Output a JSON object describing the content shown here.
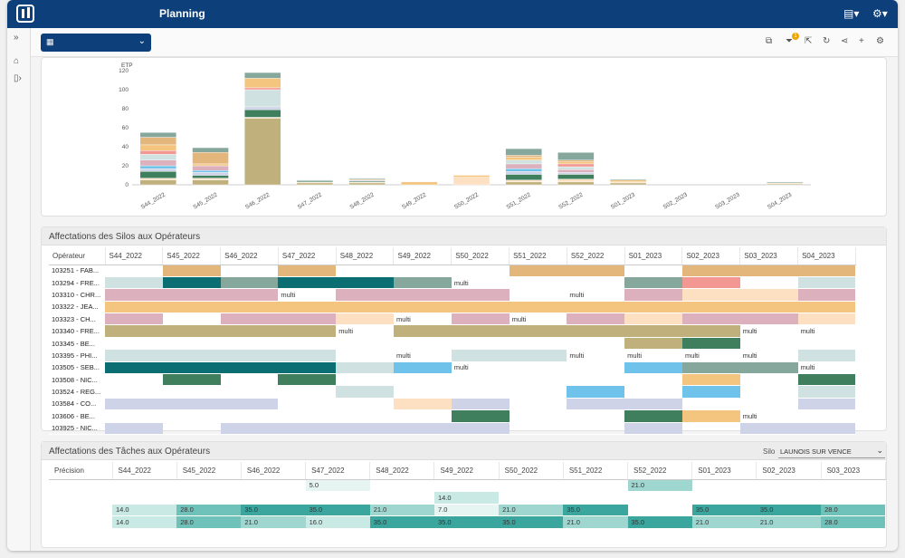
{
  "header": {
    "title": "Planning"
  },
  "icons": {
    "logo": "logo-icon",
    "clipboard": "clipboard-icon",
    "settings": "gear-icon",
    "expand": "expand-sidebar-icon",
    "home": "home-icon",
    "doc": "document-icon",
    "calendar": "calendar-icon"
  },
  "toolbar": {
    "filter_badge": "1"
  },
  "colors": {
    "accent": "#0d3f7a",
    "tan": "#e3b67c",
    "teal": "#0b6e73",
    "sage": "#85a79c",
    "pink": "#dcb0bd",
    "gold": "#f4c57f",
    "olive": "#bfb07c",
    "lightblue": "#cfe1e1",
    "sky": "#6fc2ea",
    "green": "#3f7f5e",
    "peach": "#fde0c2",
    "lavender": "#cfd3e8",
    "salmon": "#f39792"
  },
  "chart_data": {
    "type": "bar",
    "stacked": true,
    "ylabel": "ETP",
    "ylim": [
      0,
      120
    ],
    "yticks": [
      0,
      20,
      40,
      60,
      80,
      100,
      120
    ],
    "categories": [
      "S44_2022",
      "S45_2022",
      "S46_2022",
      "S47_2022",
      "S48_2022",
      "S49_2022",
      "S50_2022",
      "S51_2022",
      "S52_2022",
      "S01_2023",
      "S02_2023",
      "S03_2023",
      "S04_2023"
    ],
    "series": [
      {
        "color": "#bfb07c",
        "values": [
          5,
          5,
          70,
          2,
          2,
          0,
          0,
          3,
          3,
          2,
          0,
          0,
          1
        ]
      },
      {
        "color": "#fde0c2",
        "values": [
          2,
          2,
          1,
          1,
          1,
          0,
          8,
          2,
          3,
          1,
          0,
          0,
          1
        ]
      },
      {
        "color": "#3f7f5e",
        "values": [
          7,
          3,
          8,
          1,
          1,
          0,
          0,
          6,
          5,
          0,
          0,
          0,
          0
        ]
      },
      {
        "color": "#cfd3e8",
        "values": [
          3,
          3,
          3,
          0,
          1,
          0,
          0,
          3,
          2,
          0,
          0,
          0,
          0
        ]
      },
      {
        "color": "#6fc2ea",
        "values": [
          3,
          2,
          0,
          0,
          0,
          0,
          0,
          3,
          0,
          0,
          0,
          0,
          0
        ]
      },
      {
        "color": "#dcb0bd",
        "values": [
          6,
          5,
          0,
          0,
          0,
          0,
          0,
          5,
          3,
          0,
          0,
          0,
          0
        ]
      },
      {
        "color": "#cfe1e1",
        "values": [
          6,
          0,
          18,
          0,
          0,
          0,
          0,
          4,
          3,
          0,
          0,
          0,
          0
        ]
      },
      {
        "color": "#f39792",
        "values": [
          4,
          0,
          2,
          0,
          0,
          0,
          0,
          0,
          3,
          0,
          0,
          0,
          0
        ]
      },
      {
        "color": "#f4c57f",
        "values": [
          6,
          2,
          10,
          0,
          0,
          3,
          2,
          3,
          2,
          2,
          0,
          0,
          0
        ]
      },
      {
        "color": "#e3b67c",
        "values": [
          8,
          12,
          0,
          0,
          1,
          0,
          0,
          2,
          2,
          0,
          0,
          0,
          0
        ]
      },
      {
        "color": "#85a79c",
        "values": [
          5,
          5,
          6,
          1,
          1,
          0,
          0,
          7,
          8,
          1,
          0,
          0,
          1
        ]
      }
    ]
  },
  "grid1": {
    "title": "Affectations des Silos aux Opérateurs",
    "operator_header": "Opérateur",
    "weeks": [
      "S44_2022",
      "S45_2022",
      "S46_2022",
      "S47_2022",
      "S48_2022",
      "S49_2022",
      "S50_2022",
      "S51_2022",
      "S52_2022",
      "S01_2023",
      "S02_2023",
      "S03_2023",
      "S04_2023"
    ],
    "rows": [
      {
        "op": "103251 - FAB...",
        "cells": [
          [
            "",
            ""
          ],
          [
            "#e3b67c",
            ""
          ],
          [
            "",
            ""
          ],
          [
            "#e3b67c",
            ""
          ],
          [
            "",
            ""
          ],
          [
            "",
            ""
          ],
          [
            "",
            ""
          ],
          [
            "#e3b67c",
            ""
          ],
          [
            "#e3b67c",
            ""
          ],
          [
            "",
            ""
          ],
          [
            "#e3b67c",
            ""
          ],
          [
            "#e3b67c",
            ""
          ],
          [
            "#e3b67c",
            ""
          ]
        ]
      },
      {
        "op": "103294 - FRE...",
        "cells": [
          [
            "#cfe1e1",
            ""
          ],
          [
            "#0b6e73",
            ""
          ],
          [
            "#85a79c",
            ""
          ],
          [
            "#0b6e73",
            ""
          ],
          [
            "#0b6e73",
            ""
          ],
          [
            "#85a79c",
            ""
          ],
          [
            "",
            "multi"
          ],
          [
            "",
            ""
          ],
          [
            "",
            ""
          ],
          [
            "#85a79c",
            ""
          ],
          [
            "#f39792",
            ""
          ],
          [
            "",
            ""
          ],
          [
            "#cfe1e1",
            ""
          ]
        ]
      },
      {
        "op": "103310 - CHR...",
        "cells": [
          [
            "#dcb0bd",
            ""
          ],
          [
            "#dcb0bd",
            ""
          ],
          [
            "#dcb0bd",
            ""
          ],
          [
            "",
            "multi"
          ],
          [
            "#dcb0bd",
            ""
          ],
          [
            "#dcb0bd",
            ""
          ],
          [
            "#dcb0bd",
            ""
          ],
          [
            "",
            ""
          ],
          [
            "",
            "multi"
          ],
          [
            "#dcb0bd",
            ""
          ],
          [
            "#fde0c2",
            ""
          ],
          [
            "#fde0c2",
            ""
          ],
          [
            "#dcb0bd",
            ""
          ]
        ]
      },
      {
        "op": "103322 - JEA...",
        "cells": [
          [
            "#f4c57f",
            ""
          ],
          [
            "#f4c57f",
            ""
          ],
          [
            "#f4c57f",
            ""
          ],
          [
            "#f4c57f",
            ""
          ],
          [
            "#f4c57f",
            ""
          ],
          [
            "#f4c57f",
            ""
          ],
          [
            "#f4c57f",
            ""
          ],
          [
            "#f4c57f",
            ""
          ],
          [
            "#f4c57f",
            ""
          ],
          [
            "#f4c57f",
            ""
          ],
          [
            "#f4c57f",
            ""
          ],
          [
            "#f4c57f",
            ""
          ],
          [
            "#f4c57f",
            ""
          ]
        ]
      },
      {
        "op": "103323 - CH...",
        "cells": [
          [
            "#dcb0bd",
            ""
          ],
          [
            "",
            ""
          ],
          [
            "#dcb0bd",
            ""
          ],
          [
            "#dcb0bd",
            ""
          ],
          [
            "#fde0c2",
            ""
          ],
          [
            "",
            "multi"
          ],
          [
            "#dcb0bd",
            ""
          ],
          [
            "",
            "multi"
          ],
          [
            "#dcb0bd",
            ""
          ],
          [
            "#fde0c2",
            ""
          ],
          [
            "#dcb0bd",
            ""
          ],
          [
            "#dcb0bd",
            ""
          ],
          [
            "#fde0c2",
            ""
          ]
        ]
      },
      {
        "op": "103340 - FRE...",
        "cells": [
          [
            "#bfb07c",
            ""
          ],
          [
            "#bfb07c",
            ""
          ],
          [
            "#bfb07c",
            ""
          ],
          [
            "#bfb07c",
            ""
          ],
          [
            "",
            "multi"
          ],
          [
            "#bfb07c",
            ""
          ],
          [
            "#bfb07c",
            ""
          ],
          [
            "#bfb07c",
            ""
          ],
          [
            "#bfb07c",
            ""
          ],
          [
            "#bfb07c",
            ""
          ],
          [
            "#bfb07c",
            ""
          ],
          [
            "",
            "multi"
          ],
          [
            "",
            "multi"
          ]
        ]
      },
      {
        "op": "103345 - BE...",
        "cells": [
          [
            "",
            ""
          ],
          [
            "",
            ""
          ],
          [
            "",
            ""
          ],
          [
            "",
            ""
          ],
          [
            "",
            ""
          ],
          [
            "",
            ""
          ],
          [
            "",
            ""
          ],
          [
            "",
            ""
          ],
          [
            "",
            ""
          ],
          [
            "#bfb07c",
            ""
          ],
          [
            "#3f7f5e",
            ""
          ],
          [
            "",
            ""
          ],
          [
            "",
            ""
          ]
        ]
      },
      {
        "op": "103395 - PHI...",
        "cells": [
          [
            "#cfe1e1",
            ""
          ],
          [
            "#cfe1e1",
            ""
          ],
          [
            "#cfe1e1",
            ""
          ],
          [
            "#cfe1e1",
            ""
          ],
          [
            "",
            ""
          ],
          [
            "",
            "multi"
          ],
          [
            "#cfe1e1",
            ""
          ],
          [
            "#cfe1e1",
            ""
          ],
          [
            "",
            "multi"
          ],
          [
            "",
            "multi"
          ],
          [
            "",
            "multi"
          ],
          [
            "",
            "multi"
          ],
          [
            "#cfe1e1",
            ""
          ]
        ]
      },
      {
        "op": "103505 - SEB...",
        "cells": [
          [
            "#0b6e73",
            ""
          ],
          [
            "#0b6e73",
            ""
          ],
          [
            "#0b6e73",
            ""
          ],
          [
            "#0b6e73",
            ""
          ],
          [
            "#cfe1e1",
            ""
          ],
          [
            "#6fc2ea",
            ""
          ],
          [
            "",
            "multi"
          ],
          [
            "",
            ""
          ],
          [
            "",
            ""
          ],
          [
            "#6fc2ea",
            ""
          ],
          [
            "#85a79c",
            ""
          ],
          [
            "#85a79c",
            ""
          ],
          [
            "",
            "multi"
          ]
        ]
      },
      {
        "op": "103508 - NIC...",
        "cells": [
          [
            "",
            ""
          ],
          [
            "#3f7f5e",
            ""
          ],
          [
            "",
            ""
          ],
          [
            "#3f7f5e",
            ""
          ],
          [
            "",
            ""
          ],
          [
            "",
            ""
          ],
          [
            "",
            ""
          ],
          [
            "",
            ""
          ],
          [
            "",
            ""
          ],
          [
            "",
            ""
          ],
          [
            "#f4c57f",
            ""
          ],
          [
            "",
            ""
          ],
          [
            "#3f7f5e",
            ""
          ]
        ]
      },
      {
        "op": "103524 - REG...",
        "cells": [
          [
            "",
            ""
          ],
          [
            "",
            ""
          ],
          [
            "",
            ""
          ],
          [
            "",
            ""
          ],
          [
            "#cfe1e1",
            ""
          ],
          [
            "",
            ""
          ],
          [
            "",
            ""
          ],
          [
            "",
            ""
          ],
          [
            "#6fc2ea",
            ""
          ],
          [
            "",
            ""
          ],
          [
            "#6fc2ea",
            ""
          ],
          [
            "",
            ""
          ],
          [
            "#cfe1e1",
            ""
          ]
        ]
      },
      {
        "op": "103584 - CO...",
        "cells": [
          [
            "#cfd3e8",
            ""
          ],
          [
            "#cfd3e8",
            ""
          ],
          [
            "#cfd3e8",
            ""
          ],
          [
            "",
            ""
          ],
          [
            "",
            ""
          ],
          [
            "#fde0c2",
            ""
          ],
          [
            "#cfd3e8",
            ""
          ],
          [
            "",
            ""
          ],
          [
            "#cfd3e8",
            ""
          ],
          [
            "#cfd3e8",
            ""
          ],
          [
            "",
            ""
          ],
          [
            "",
            ""
          ],
          [
            "#cfd3e8",
            ""
          ]
        ]
      },
      {
        "op": "103606 - BE...",
        "cells": [
          [
            "",
            ""
          ],
          [
            "",
            ""
          ],
          [
            "",
            ""
          ],
          [
            "",
            ""
          ],
          [
            "",
            ""
          ],
          [
            "",
            ""
          ],
          [
            "#3f7f5e",
            ""
          ],
          [
            "",
            ""
          ],
          [
            "",
            ""
          ],
          [
            "#3f7f5e",
            ""
          ],
          [
            "#f4c57f",
            ""
          ],
          [
            "",
            "multi"
          ],
          [
            "",
            ""
          ]
        ]
      },
      {
        "op": "103925 - NIC...",
        "cells": [
          [
            "#cfd3e8",
            ""
          ],
          [
            "",
            ""
          ],
          [
            "#cfd3e8",
            ""
          ],
          [
            "#cfd3e8",
            ""
          ],
          [
            "#cfd3e8",
            ""
          ],
          [
            "#cfd3e8",
            ""
          ],
          [
            "#cfd3e8",
            ""
          ],
          [
            "",
            ""
          ],
          [
            "",
            ""
          ],
          [
            "#cfd3e8",
            ""
          ],
          [
            "",
            ""
          ],
          [
            "#cfd3e8",
            ""
          ],
          [
            "#cfd3e8",
            ""
          ]
        ]
      }
    ]
  },
  "grid2": {
    "title": "Affectations des Tâches aux Opérateurs",
    "silo_label": "Silo",
    "silo_value": "LAUNOIS SUR VENCE",
    "precision_header": "Précision",
    "weeks": [
      "S44_2022",
      "S45_2022",
      "S46_2022",
      "S47_2022",
      "S48_2022",
      "S49_2022",
      "S50_2022",
      "S51_2022",
      "S52_2022",
      "S01_2023",
      "S02_2023",
      "S03_2023"
    ],
    "rows": [
      {
        "cells": [
          [
            "",
            ""
          ],
          [
            "",
            ""
          ],
          [
            "",
            ""
          ],
          [
            "#e6f4f2",
            "5.0"
          ],
          [
            "",
            ""
          ],
          [
            "",
            ""
          ],
          [
            "",
            ""
          ],
          [
            "",
            ""
          ],
          [
            "#9fd6d0",
            "21.0"
          ],
          [
            "",
            ""
          ],
          [
            "",
            ""
          ],
          [
            "",
            ""
          ]
        ]
      },
      {
        "cells": [
          [
            "",
            ""
          ],
          [
            "",
            ""
          ],
          [
            "",
            ""
          ],
          [
            "",
            ""
          ],
          [
            "",
            ""
          ],
          [
            "#c9e9e5",
            "14.0"
          ],
          [
            "",
            ""
          ],
          [
            "",
            ""
          ],
          [
            "",
            ""
          ],
          [
            "",
            ""
          ],
          [
            "",
            ""
          ],
          [
            "",
            ""
          ]
        ]
      },
      {
        "cells": [
          [
            "#c9e9e5",
            "14.0"
          ],
          [
            "#6fc2b9",
            "28.0"
          ],
          [
            "#3aa69e",
            "35.0"
          ],
          [
            "#3aa69e",
            "35.0"
          ],
          [
            "#9fd6d0",
            "21.0"
          ],
          [
            "#e6f4f2",
            "7.0"
          ],
          [
            "#9fd6d0",
            "21.0"
          ],
          [
            "#3aa69e",
            "35.0"
          ],
          [
            "",
            ""
          ],
          [
            "#3aa69e",
            "35.0"
          ],
          [
            "#3aa69e",
            "35.0"
          ],
          [
            "#6fc2b9",
            "28.0"
          ]
        ]
      },
      {
        "cells": [
          [
            "#c9e9e5",
            "14.0"
          ],
          [
            "#6fc2b9",
            "28.0"
          ],
          [
            "#9fd6d0",
            "21.0"
          ],
          [
            "#c9e9e5",
            "16.0"
          ],
          [
            "#3aa69e",
            "35.0"
          ],
          [
            "#3aa69e",
            "35.0"
          ],
          [
            "#3aa69e",
            "35.0"
          ],
          [
            "#9fd6d0",
            "21.0"
          ],
          [
            "#3aa69e",
            "35.0"
          ],
          [
            "#9fd6d0",
            "21.0"
          ],
          [
            "#9fd6d0",
            "21.0"
          ],
          [
            "#6fc2b9",
            "28.0"
          ]
        ]
      }
    ]
  }
}
